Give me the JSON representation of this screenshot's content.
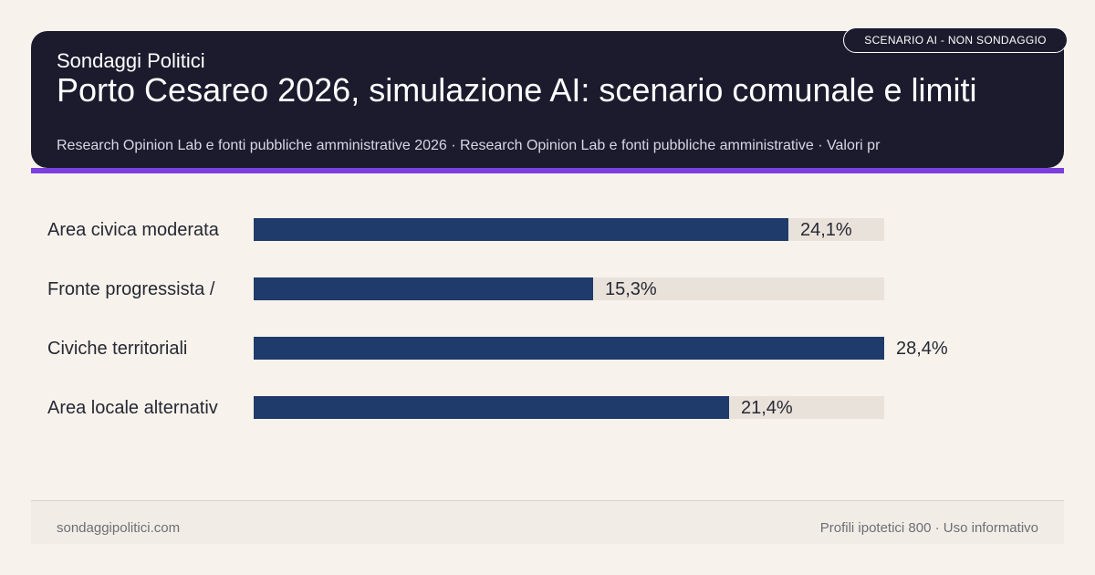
{
  "header": {
    "brand": "Sondaggi Politici",
    "title": "Porto Cesareo 2026, simulazione AI: scenario comunale e limiti",
    "source": "Research Opinion Lab e fonti pubbliche amministrative 2026 · Research Opinion Lab e fonti pubbliche amministrative · Valori pr",
    "badge": "SCENARIO AI - NON SONDAGGIO"
  },
  "colors": {
    "header_bg": "#1c1b2e",
    "accent": "#7b3fe0",
    "bar": "#1f3b6b",
    "track": "#e9e2da",
    "background": "#f7f3ec"
  },
  "chart_data": {
    "type": "bar",
    "orientation": "horizontal",
    "categories": [
      "Area civica moderata",
      "Fronte progressista /",
      "Civiche territoriali",
      "Area locale alternativ"
    ],
    "values": [
      24.1,
      15.3,
      28.4,
      21.4
    ],
    "value_labels": [
      "24,1%",
      "15,3%",
      "28,4%",
      "21,4%"
    ],
    "xlim": [
      0,
      28.4
    ],
    "grid": false,
    "legend": "none"
  },
  "footer": {
    "site": "sondaggipolitici.com",
    "note": "Profili ipotetici 800 · Uso informativo"
  }
}
